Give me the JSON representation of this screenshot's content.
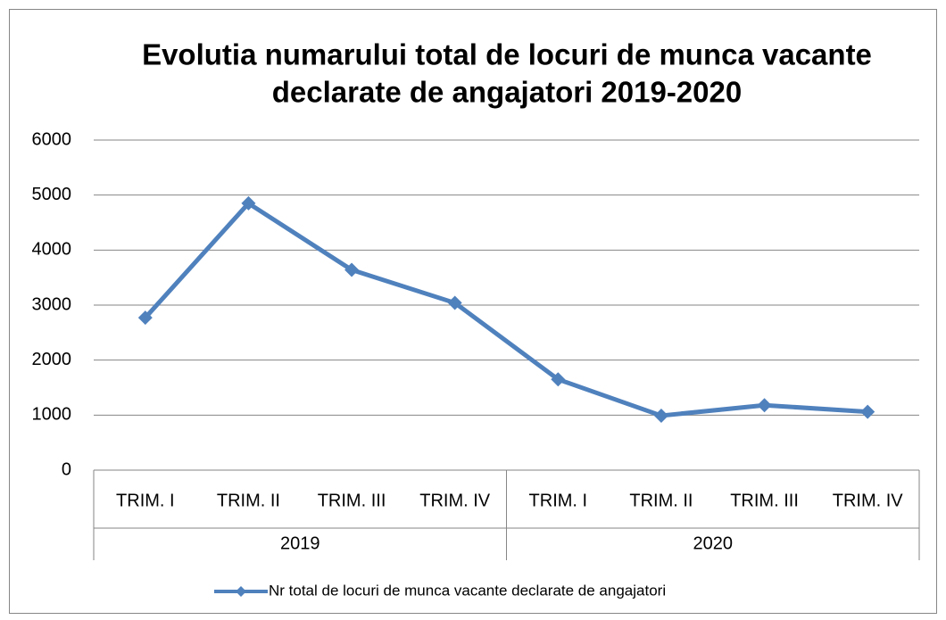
{
  "chart_data": {
    "type": "line",
    "title": [
      "Evolutia numarului total de locuri de munca vacante",
      "declarate de angajatori 2019-2020"
    ],
    "categories": [
      "TRIM. I",
      "TRIM. II",
      "TRIM. III",
      "TRIM. IV",
      "TRIM. I",
      "TRIM. II",
      "TRIM. III",
      "TRIM. IV"
    ],
    "category_groups": [
      "2019",
      "2020"
    ],
    "series": [
      {
        "name": "Nr total de locuri de munca vacante declarate de angajatori",
        "color": "#4f81bd",
        "values": [
          2770,
          4850,
          3640,
          3040,
          1650,
          990,
          1180,
          1060
        ]
      }
    ],
    "ylim": [
      0,
      6000
    ],
    "yticks": [
      0,
      1000,
      2000,
      3000,
      4000,
      5000,
      6000
    ],
    "grid": true,
    "legend": "bottom"
  }
}
